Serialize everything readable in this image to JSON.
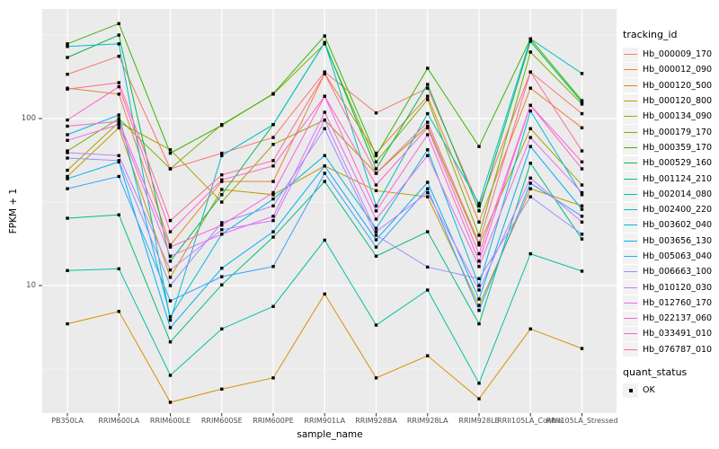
{
  "chart_data": {
    "type": "line",
    "title": "",
    "xlabel": "sample_name",
    "ylabel": "FPKM + 1",
    "y_scale": "log10",
    "y_major_ticks": [
      10,
      100
    ],
    "y_minor_gridlines": [
      3.162,
      31.62,
      316.2
    ],
    "ylim": [
      1.8,
      430
    ],
    "grid": "on",
    "legend_position": "right",
    "legend_title": "tracking_id",
    "marker": "filled-black-square",
    "point_legend": {
      "title": "quant_status",
      "items": [
        {
          "label": "OK",
          "marker": "filled-black-square"
        }
      ]
    },
    "categories": [
      "PB350LA",
      "RRIM600LA",
      "RRIM600LE",
      "RRIM600SE",
      "RRIM600PE",
      "RRIM901LA",
      "RRIM928BA",
      "RRIM928LA",
      "RRIM928LE",
      "RRII105LA_Control",
      "RRII105LA_Stressed"
    ],
    "series": [
      {
        "name": "Hb_000009_170",
        "color": "#F8766D",
        "values": [
          184,
          236,
          50,
          62,
          77,
          190,
          108,
          152,
          30,
          190,
          107
        ]
      },
      {
        "name": "Hb_000012_090",
        "color": "#EA8331",
        "values": [
          152,
          140,
          17.5,
          42,
          42,
          186,
          62,
          136,
          24,
          152,
          88
        ]
      },
      {
        "name": "Hb_000120_500",
        "color": "#D89000",
        "values": [
          5.9,
          7.0,
          2.0,
          2.4,
          2.8,
          8.9,
          2.8,
          3.8,
          2.1,
          5.5,
          4.2
        ]
      },
      {
        "name": "Hb_000120_800",
        "color": "#C09B00",
        "values": [
          45,
          88,
          11.2,
          37.6,
          35,
          52,
          37,
          34,
          7.6,
          38,
          30
        ]
      },
      {
        "name": "Hb_000134_090",
        "color": "#A3A500",
        "values": [
          49,
          95,
          65,
          31.6,
          70,
          98,
          47,
          90,
          17.5,
          87,
          40
        ]
      },
      {
        "name": "Hb_000179_170",
        "color": "#7CAE00",
        "values": [
          64,
          100,
          50,
          92,
          140,
          280,
          55,
          130,
          20,
          250,
          122
        ]
      },
      {
        "name": "Hb_000359_170",
        "color": "#39B600",
        "values": [
          280,
          370,
          62,
          91,
          141,
          312,
          60,
          200,
          68,
          300,
          128
        ]
      },
      {
        "name": "Hb_000529_160",
        "color": "#00BB4E",
        "values": [
          232,
          316,
          14,
          35,
          92,
          285,
          50,
          160,
          28,
          290,
          125
        ]
      },
      {
        "name": "Hb_001124_210",
        "color": "#00BF7D",
        "values": [
          25.3,
          26.5,
          4.6,
          10.1,
          19.5,
          42,
          15,
          21,
          5.9,
          54,
          19
        ]
      },
      {
        "name": "Hb_002014_080",
        "color": "#00C1A3",
        "values": [
          12.3,
          12.6,
          2.9,
          5.5,
          7.5,
          18.7,
          5.8,
          9.4,
          2.6,
          15.5,
          12.2
        ]
      },
      {
        "name": "Hb_002400_220",
        "color": "#00BFC4",
        "values": [
          270,
          280,
          6.2,
          60,
          92,
          285,
          30,
          107,
          31,
          300,
          186
        ]
      },
      {
        "name": "Hb_003602_040",
        "color": "#00BADE",
        "values": [
          80,
          105,
          6.5,
          20.3,
          33,
          60,
          22,
          65,
          10,
          111,
          35
        ]
      },
      {
        "name": "Hb_003656_130",
        "color": "#00B0F6",
        "values": [
          43.6,
          55,
          5.6,
          12.7,
          21,
          52,
          18.8,
          41.5,
          8.3,
          68,
          28.6
        ]
      },
      {
        "name": "Hb_005063_040",
        "color": "#35A2FF",
        "values": [
          38,
          45,
          8.1,
          11.3,
          13,
          47,
          17,
          38,
          7.1,
          41,
          26
        ]
      },
      {
        "name": "Hb_006663_100",
        "color": "#9590FF",
        "values": [
          58,
          56,
          10,
          23.8,
          30,
          87,
          20,
          12.9,
          11,
          34,
          20.3
        ]
      },
      {
        "name": "Hb_010120_030",
        "color": "#C77CFF",
        "values": [
          62.5,
          60,
          12.4,
          21.6,
          24.5,
          98,
          21,
          36,
          9.4,
          44,
          24
        ]
      },
      {
        "name": "Hb_012760_170",
        "color": "#E76BF3",
        "values": [
          74,
          92,
          15,
          20.3,
          26,
          109,
          25,
          60,
          13,
          77,
          36
        ]
      },
      {
        "name": "Hb_022137_060",
        "color": "#FA62DB",
        "values": [
          90,
          96,
          17,
          23,
          36,
          136,
          28,
          80,
          14,
          120,
          50
        ]
      },
      {
        "name": "Hb_033491_010",
        "color": "#FF61CC",
        "values": [
          98,
          155,
          21,
          43,
          52,
          136,
          40,
          88,
          15.5,
          120,
          55
        ]
      },
      {
        "name": "Hb_076787_010",
        "color": "#FF6A98",
        "values": [
          150,
          164,
          24.5,
          46,
          56,
          185,
          47,
          95,
          18,
          190,
          64
        ]
      }
    ]
  },
  "style": {
    "panel_bg": "#EBEBEB",
    "grid_color": "#FFFFFF",
    "tick_mark_color": "#333333",
    "tick_label_color": "#4D4D4D",
    "text_color": "#000000",
    "legend_key_bg": "#F2F2F2",
    "point_color": "#000000"
  }
}
